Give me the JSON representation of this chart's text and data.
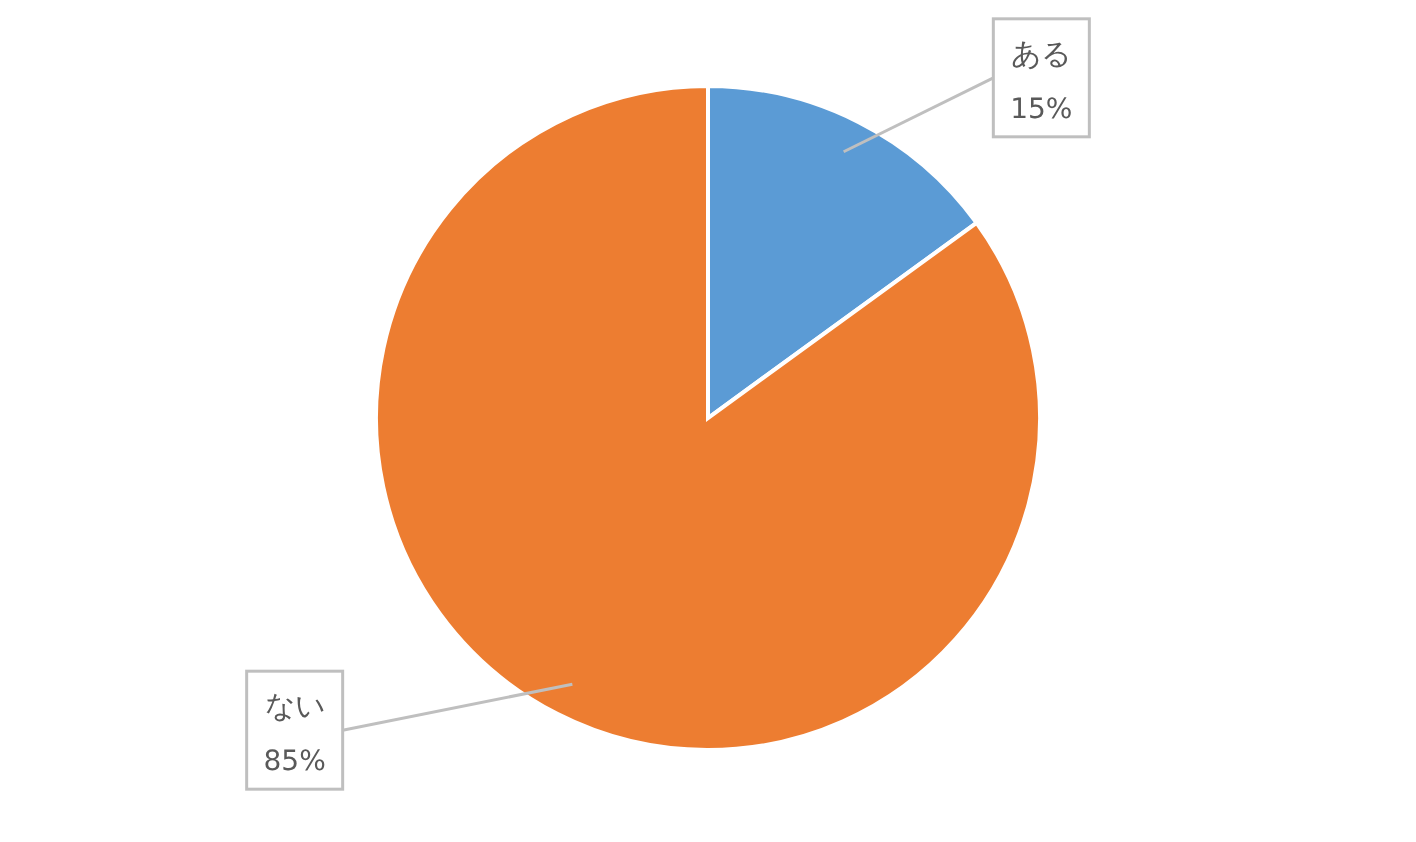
{
  "chart_data": {
    "type": "pie",
    "categories": [
      "ある",
      "ない"
    ],
    "values": [
      15,
      85
    ],
    "colors": [
      "#5b9bd5",
      "#ed7d31"
    ],
    "value_labels": [
      "15%",
      "85%"
    ]
  }
}
